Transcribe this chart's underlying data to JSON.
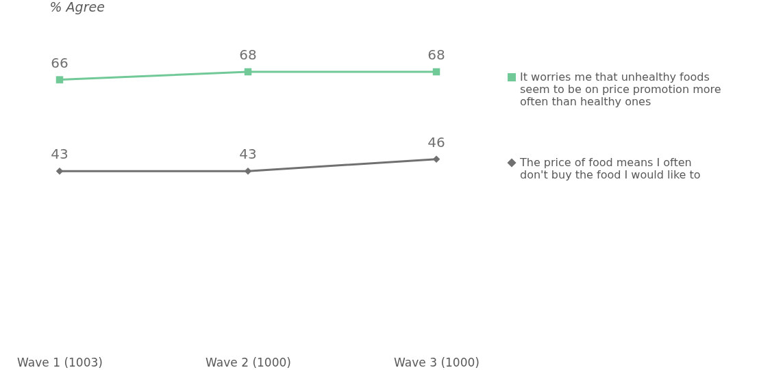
{
  "chart_data": {
    "type": "line",
    "ylabel": "% Agree",
    "categories": [
      "Wave 1 (1003)",
      "Wave 2 (1000)",
      "Wave 3 (1000)"
    ],
    "series": [
      {
        "name": "It worries me that unhealthy foods seem to be on price promotion more often than healthy ones",
        "color": "#70c997",
        "marker": "square",
        "values": [
          66,
          68,
          68
        ]
      },
      {
        "name": "The price of food means I often don't buy the food I would like to",
        "color": "#707070",
        "marker": "diamond",
        "values": [
          43,
          43,
          46
        ]
      }
    ],
    "tick_labels": "x",
    "data_labels": true,
    "legend": "right",
    "grid": false
  }
}
